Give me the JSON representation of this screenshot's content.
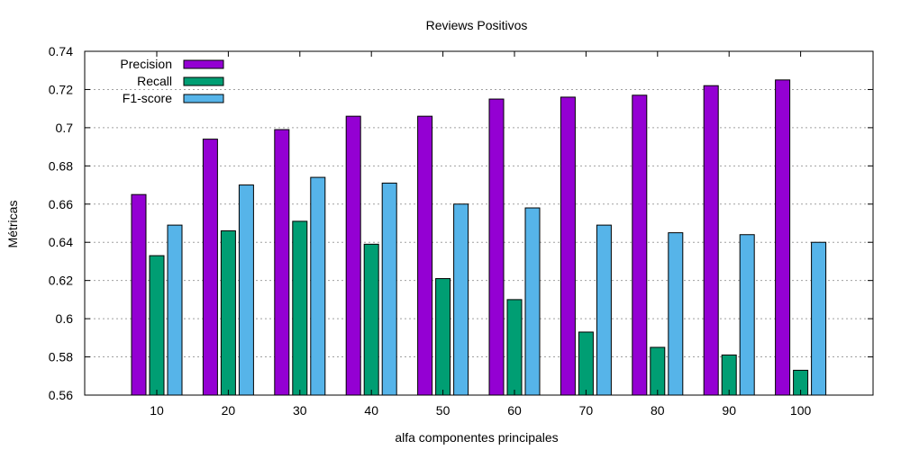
{
  "chart_data": {
    "type": "bar",
    "title": "Reviews Positivos",
    "xlabel": "alfa componentes principales",
    "ylabel": "Métricas",
    "categories": [
      "10",
      "20",
      "30",
      "40",
      "50",
      "60",
      "70",
      "80",
      "90",
      "100"
    ],
    "ylim": [
      0.56,
      0.74
    ],
    "yticks": [
      "0.56",
      "0.58",
      "0.6",
      "0.62",
      "0.64",
      "0.66",
      "0.68",
      "0.7",
      "0.72",
      "0.74"
    ],
    "grid": true,
    "legend_position": "top-left",
    "series": [
      {
        "name": "Precision",
        "color": "#9400d3",
        "values": [
          0.665,
          0.694,
          0.699,
          0.706,
          0.706,
          0.715,
          0.716,
          0.717,
          0.722,
          0.725
        ]
      },
      {
        "name": "Recall",
        "color": "#009e73",
        "values": [
          0.633,
          0.646,
          0.651,
          0.639,
          0.621,
          0.61,
          0.593,
          0.585,
          0.581,
          0.573
        ]
      },
      {
        "name": "F1-score",
        "color": "#56b4e9",
        "values": [
          0.649,
          0.67,
          0.674,
          0.671,
          0.66,
          0.658,
          0.649,
          0.645,
          0.644,
          0.64
        ]
      }
    ]
  }
}
